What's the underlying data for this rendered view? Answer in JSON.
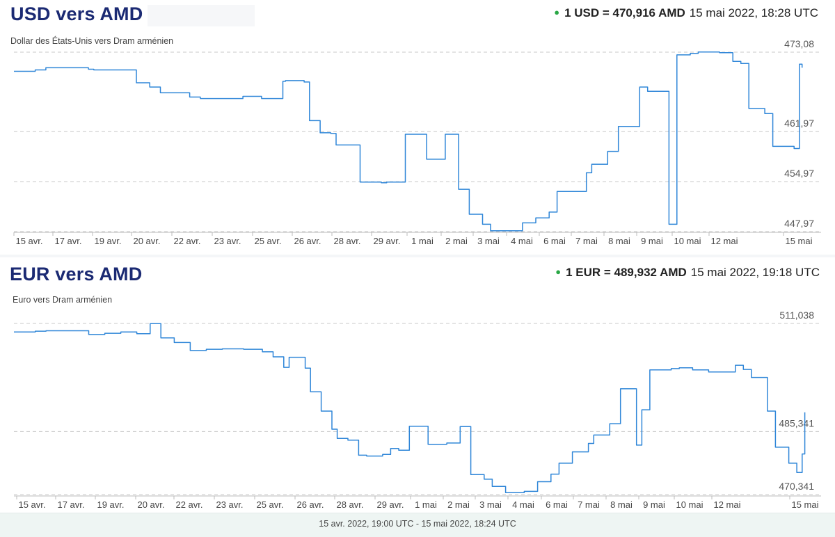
{
  "charts": [
    {
      "title": "USD vers AMD",
      "subtitle": "Dollar des États-Unis vers Dram arménien",
      "rate_text": "1 USD = 470,916 AMD",
      "timestamp": "15 mai 2022, 18:28 UTC"
    },
    {
      "title": "EUR vers AMD",
      "subtitle": "Euro vers Dram arménien",
      "rate_text": "1 EUR = 489,932 AMD",
      "timestamp": "15 mai 2022, 19:18 UTC"
    }
  ],
  "footer": {
    "range": "15 avr. 2022, 19:00 UTC - 15 mai 2022, 18:24 UTC"
  },
  "colors": {
    "line": "#2f86d8",
    "title": "#1b2a73",
    "status_dot": "#29a745",
    "grid": "#c8c8c8"
  },
  "chart_data": [
    {
      "type": "line",
      "title": "USD vers AMD",
      "subtitle": "Dollar des États-Unis vers Dram arménien",
      "xlabel": "",
      "ylabel": "",
      "x_tick_labels": [
        "15 avr.",
        "17 avr.",
        "19 avr.",
        "20 avr.",
        "22 avr.",
        "23 avr.",
        "25 avr.",
        "26 avr.",
        "28 avr.",
        "29 avr.",
        "1 mai",
        "2 mai",
        "3 mai",
        "4 mai",
        "6 mai",
        "7 mai",
        "8 mai",
        "9 mai",
        "10 mai",
        "12 mai",
        "15 mai"
      ],
      "y_tick_labels": [
        "473,08",
        "461,97",
        "454,97",
        "447,97"
      ],
      "y_ticks": [
        473.08,
        461.97,
        454.97,
        447.97
      ],
      "ylim": [
        447.97,
        473.08
      ],
      "xlim": [
        0,
        30
      ],
      "grid": true,
      "series": [
        {
          "x": [
            0,
            0.8,
            1.2,
            2,
            2.8,
            3,
            4.6,
            5.1,
            5.5,
            6.6,
            7,
            8.6,
            9.3,
            9.7,
            10.1,
            10.2,
            10.9,
            11.1,
            11.5,
            11.9,
            12.1,
            12.7,
            13,
            13.8,
            14,
            14.7,
            15.5,
            15.9,
            16.2,
            16.7,
            17.1,
            17.6,
            17.9,
            19.1,
            19.6,
            20.1,
            20.4,
            21.5,
            21.7,
            22.3,
            22.7,
            23.5,
            23.8,
            24.6,
            24.9,
            25.4,
            25.7,
            26.5,
            27,
            27.3,
            27.6,
            28.2,
            28.5,
            29.3,
            29.5,
            29.6
          ],
          "y": [
            470.4,
            470.6,
            470.9,
            470.9,
            470.7,
            470.6,
            468.8,
            468.2,
            467.4,
            466.8,
            466.6,
            466.9,
            466.6,
            466.6,
            469.0,
            469.1,
            468.9,
            463.5,
            461.8,
            461.7,
            460.1,
            460.1,
            454.9,
            454.8,
            454.9,
            461.6,
            458.1,
            458.1,
            461.6,
            453.9,
            450.4,
            449.0,
            448.1,
            449.2,
            449.9,
            450.7,
            453.6,
            456.2,
            457.4,
            459.2,
            462.7,
            468.2,
            467.6,
            449.0,
            472.7,
            472.9,
            473.1,
            473.0,
            471.8,
            471.5,
            465.2,
            464.5,
            459.9,
            459.6,
            471.4,
            470.9
          ]
        }
      ]
    },
    {
      "type": "line",
      "title": "EUR vers AMD",
      "subtitle": "Euro vers Dram arménien",
      "xlabel": "",
      "ylabel": "",
      "x_tick_labels": [
        "15 avr.",
        "17 avr.",
        "19 avr.",
        "20 avr.",
        "22 avr.",
        "23 avr.",
        "25 avr.",
        "26 avr.",
        "28 avr.",
        "29 avr.",
        "1 mai",
        "2 mai",
        "3 mai",
        "4 mai",
        "6 mai",
        "7 mai",
        "8 mai",
        "9 mai",
        "10 mai",
        "12 mai",
        "15 mai"
      ],
      "y_tick_labels": [
        "511,038",
        "485,341",
        "470,341"
      ],
      "y_ticks": [
        511.038,
        485.341,
        470.341
      ],
      "ylim": [
        470.341,
        511.038
      ],
      "xlim": [
        0,
        30
      ],
      "grid": true,
      "series": [
        {
          "x": [
            0,
            0.8,
            1.2,
            2,
            2.8,
            3.4,
            4.0,
            4.6,
            5.1,
            5.5,
            6.0,
            6.6,
            7.2,
            7.8,
            8.6,
            9.3,
            9.7,
            10.1,
            10.3,
            10.9,
            11.1,
            11.5,
            11.9,
            12.1,
            12.5,
            12.9,
            13.2,
            13.8,
            14.1,
            14.4,
            14.8,
            15.5,
            15.9,
            16.2,
            16.7,
            17.1,
            17.6,
            17.9,
            18.4,
            19.1,
            19.6,
            20.1,
            20.4,
            20.9,
            21.5,
            21.7,
            22.3,
            22.7,
            23.3,
            23.5,
            23.8,
            24.6,
            24.9,
            25.4,
            26.0,
            26.5,
            27.0,
            27.3,
            27.6,
            28.2,
            28.5,
            29.0,
            29.3,
            29.5,
            29.6
          ],
          "y": [
            509.0,
            509.2,
            509.3,
            509.3,
            508.4,
            508.7,
            509.0,
            508.6,
            511.0,
            507.6,
            506.5,
            504.6,
            504.9,
            505.0,
            504.9,
            504.3,
            503.1,
            500.6,
            503.0,
            500.4,
            494.8,
            490.2,
            485.9,
            483.7,
            483.3,
            479.7,
            479.5,
            479.9,
            481.3,
            480.9,
            486.6,
            482.3,
            482.3,
            482.6,
            486.5,
            475.1,
            474.0,
            472.3,
            470.8,
            471.1,
            473.4,
            475.2,
            477.8,
            480.5,
            482.5,
            484.5,
            487.2,
            495.5,
            482.1,
            490.5,
            500.0,
            500.3,
            500.5,
            500.0,
            499.5,
            499.5,
            501.1,
            500.1,
            498.2,
            490.2,
            481.6,
            477.8,
            475.6,
            480.0,
            489.9
          ]
        }
      ]
    }
  ]
}
